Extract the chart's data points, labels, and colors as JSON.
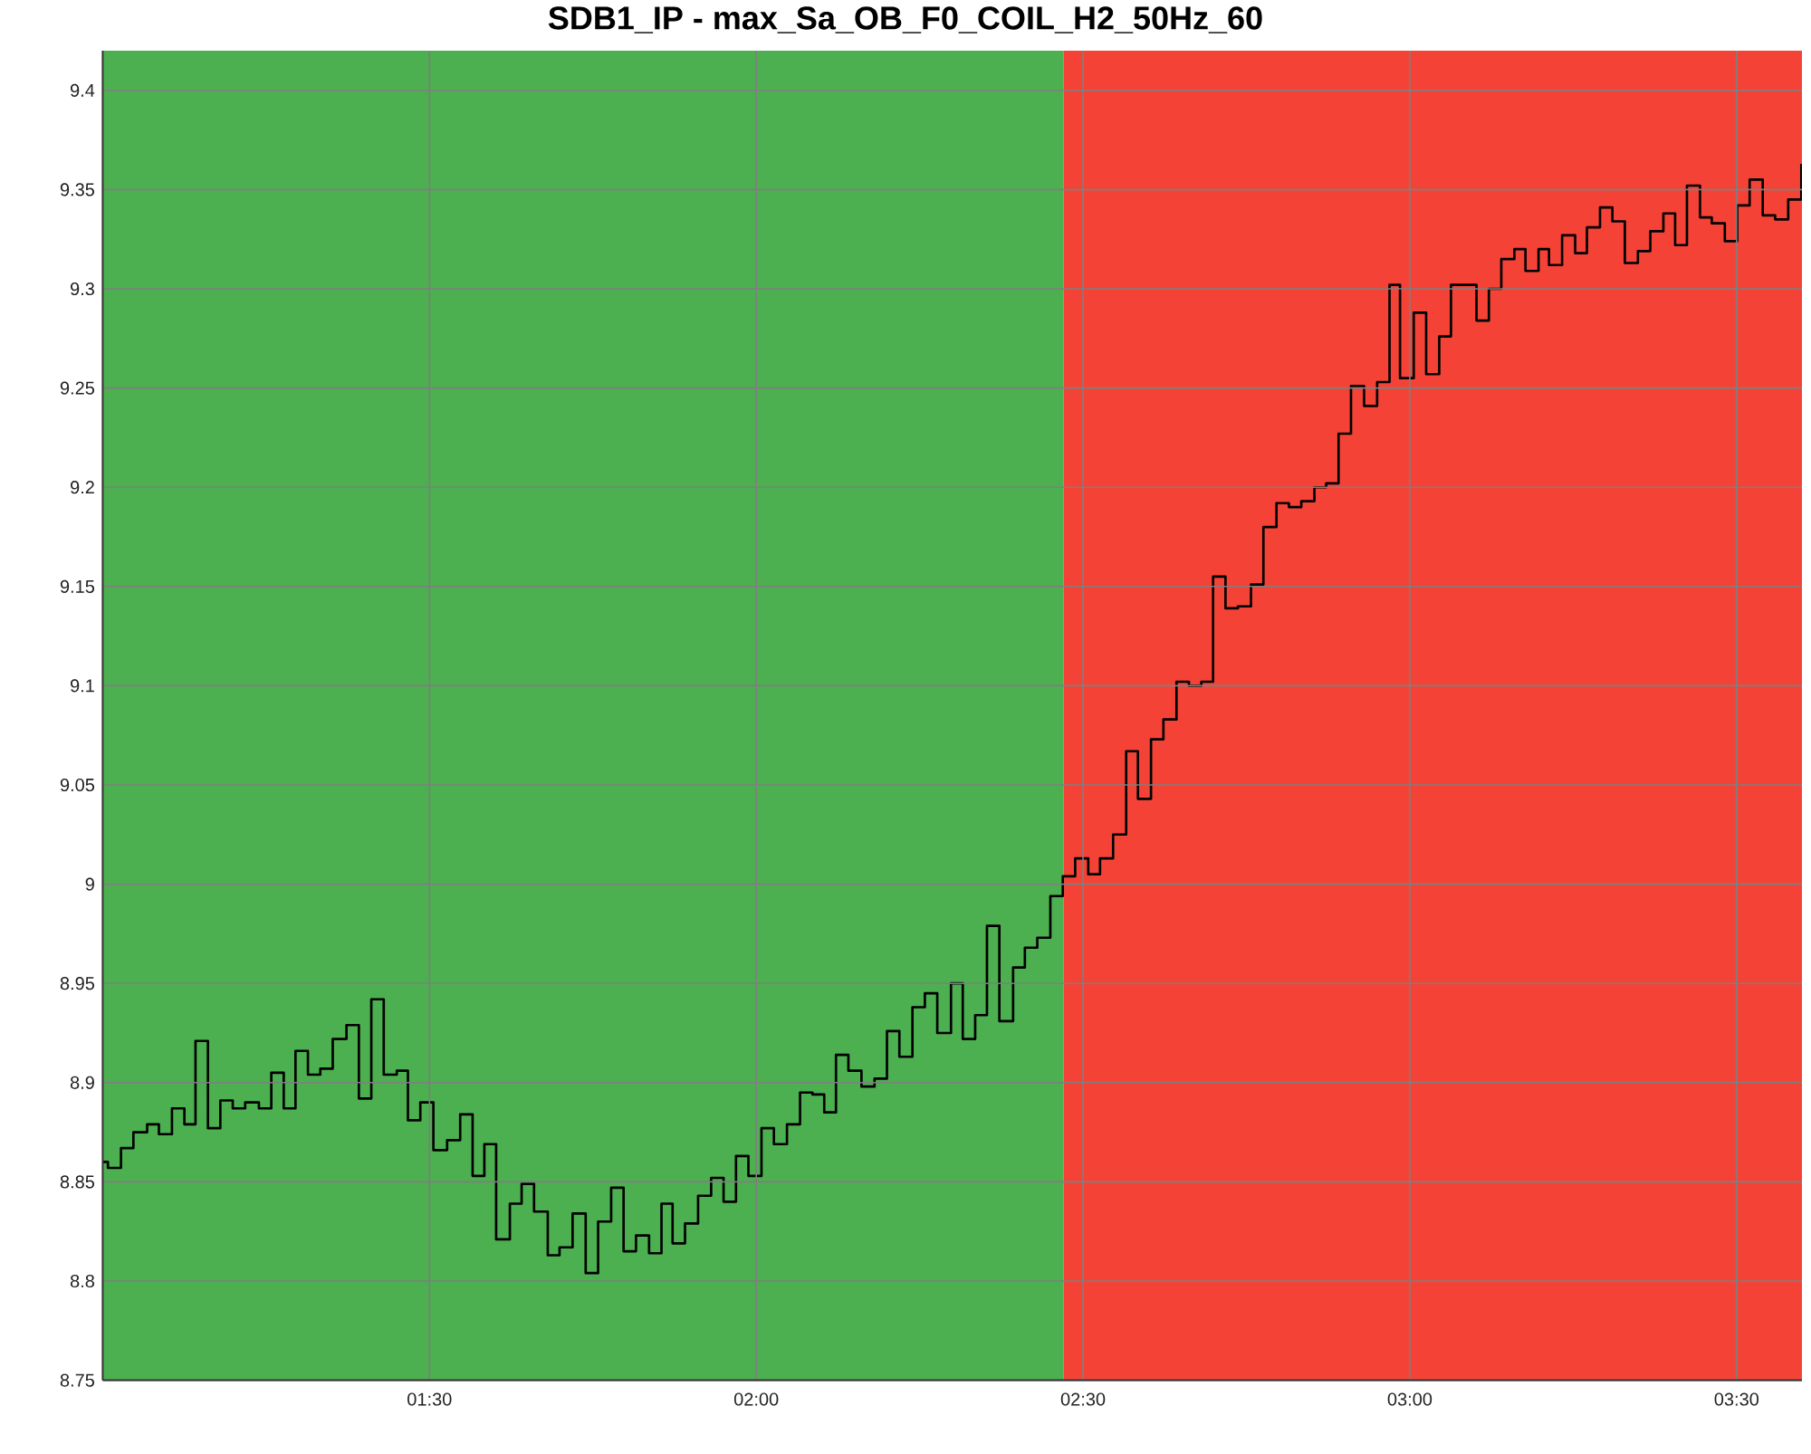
{
  "chart_data": {
    "type": "step",
    "title": "SDB1_IP - max_Sa_OB_F0_COIL_H2_50Hz_60",
    "x": [
      1.0,
      1.008,
      1.028,
      1.047,
      1.068,
      1.086,
      1.106,
      1.125,
      1.142,
      1.161,
      1.18,
      1.199,
      1.218,
      1.239,
      1.258,
      1.277,
      1.295,
      1.314,
      1.333,
      1.352,
      1.373,
      1.392,
      1.411,
      1.43,
      1.45,
      1.467,
      1.486,
      1.506,
      1.527,
      1.547,
      1.566,
      1.584,
      1.602,
      1.623,
      1.641,
      1.66,
      1.681,
      1.699,
      1.719,
      1.739,
      1.758,
      1.778,
      1.797,
      1.816,
      1.836,
      1.855,
      1.872,
      1.891,
      1.911,
      1.931,
      1.95,
      1.969,
      1.988,
      2.008,
      2.027,
      2.047,
      2.067,
      2.086,
      2.104,
      2.122,
      2.141,
      2.161,
      2.181,
      2.2,
      2.219,
      2.239,
      2.258,
      2.277,
      2.298,
      2.316,
      2.335,
      2.353,
      2.372,
      2.393,
      2.411,
      2.43,
      2.45,
      2.469,
      2.488,
      2.508,
      2.526,
      2.546,
      2.566,
      2.584,
      2.604,
      2.623,
      2.643,
      2.662,
      2.681,
      2.699,
      2.718,
      2.737,
      2.757,
      2.776,
      2.796,
      2.815,
      2.834,
      2.854,
      2.872,
      2.891,
      2.91,
      2.93,
      2.95,
      2.969,
      2.985,
      3.006,
      3.025,
      3.045,
      3.063,
      3.082,
      3.102,
      3.121,
      3.14,
      3.16,
      3.177,
      3.197,
      3.213,
      3.233,
      3.253,
      3.271,
      3.291,
      3.31,
      3.329,
      3.349,
      3.368,
      3.388,
      3.406,
      3.424,
      3.444,
      3.462,
      3.482,
      3.501,
      3.52,
      3.54,
      3.559,
      3.579,
      3.599
    ],
    "series": [
      {
        "color": "#000000",
        "values": [
          8.86,
          8.857,
          8.867,
          8.875,
          8.879,
          8.874,
          8.887,
          8.879,
          8.921,
          8.877,
          8.891,
          8.887,
          8.89,
          8.887,
          8.905,
          8.887,
          8.916,
          8.904,
          8.907,
          8.922,
          8.929,
          8.892,
          8.942,
          8.904,
          8.906,
          8.881,
          8.89,
          8.866,
          8.871,
          8.884,
          8.853,
          8.869,
          8.821,
          8.839,
          8.849,
          8.835,
          8.813,
          8.817,
          8.834,
          8.804,
          8.83,
          8.847,
          8.815,
          8.823,
          8.814,
          8.839,
          8.819,
          8.829,
          8.843,
          8.852,
          8.84,
          8.863,
          8.853,
          8.877,
          8.869,
          8.879,
          8.895,
          8.894,
          8.885,
          8.914,
          8.906,
          8.898,
          8.902,
          8.926,
          8.913,
          8.938,
          8.945,
          8.925,
          8.95,
          8.922,
          8.934,
          8.979,
          8.931,
          8.958,
          8.968,
          8.973,
          8.994,
          9.004,
          9.013,
          9.005,
          9.013,
          9.025,
          9.067,
          9.043,
          9.073,
          9.083,
          9.102,
          9.1,
          9.102,
          9.155,
          9.139,
          9.14,
          9.151,
          9.18,
          9.192,
          9.19,
          9.193,
          9.2,
          9.202,
          9.227,
          9.251,
          9.241,
          9.253,
          9.302,
          9.255,
          9.288,
          9.257,
          9.276,
          9.302,
          9.302,
          9.284,
          9.3,
          9.315,
          9.32,
          9.309,
          9.32,
          9.312,
          9.327,
          9.318,
          9.331,
          9.341,
          9.334,
          9.313,
          9.319,
          9.329,
          9.338,
          9.322,
          9.352,
          9.336,
          9.333,
          9.324,
          9.342,
          9.355,
          9.337,
          9.335,
          9.345,
          9.363
        ]
      }
    ],
    "xlim": [
      1.0,
      3.6
    ],
    "ylim": [
      8.75,
      9.42
    ],
    "xticks": [
      {
        "value": 1.5,
        "label": "01:30"
      },
      {
        "value": 2.0,
        "label": "02:00"
      },
      {
        "value": 2.5,
        "label": "02:30"
      },
      {
        "value": 3.0,
        "label": "03:00"
      },
      {
        "value": 3.5,
        "label": "03:30"
      }
    ],
    "yticks": [
      8.75,
      8.8,
      8.85,
      8.9,
      8.95,
      9,
      9.05,
      9.1,
      9.15,
      9.2,
      9.25,
      9.3,
      9.35,
      9.4
    ],
    "grid": true,
    "bands": [
      {
        "axis": "x",
        "from": 1.0,
        "to": 2.47,
        "color": "#4caf50"
      },
      {
        "axis": "x",
        "from": 2.47,
        "to": 3.6,
        "color": "#f44336"
      }
    ]
  }
}
